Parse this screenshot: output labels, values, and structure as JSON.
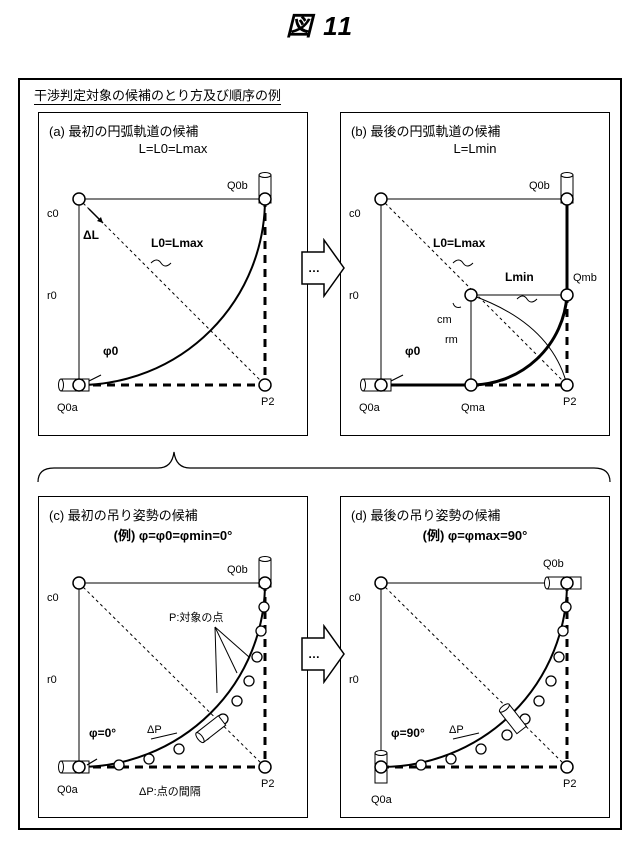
{
  "figure_title": "図 11",
  "heading": "干渉判定対象の候補のとり方及び順序の例",
  "ellipsis": "…",
  "panels": {
    "a": {
      "title": "(a) 最初の円弧軌道の候補",
      "subtitle": "L=L0=Lmax",
      "labels": {
        "c0": "c0",
        "r0": "r0",
        "q0a": "Q0a",
        "q0b": "Q0b",
        "p2": "P2",
        "dl": "ΔL",
        "l0": "L0=Lmax",
        "phi": "φ0"
      }
    },
    "b": {
      "title": "(b) 最後の円弧軌道の候補",
      "subtitle": "L=Lmin",
      "labels": {
        "c0": "c0",
        "r0": "r0",
        "q0a": "Q0a",
        "q0b": "Q0b",
        "p2": "P2",
        "l0": "L0=Lmax",
        "lmin": "Lmin",
        "qmb": "Qmb",
        "cm": "cm",
        "rm": "rm",
        "qma": "Qma",
        "phi": "φ0"
      }
    },
    "c": {
      "title": "(c) 最初の吊り姿勢の候補",
      "subtitle": "(例) φ=φ0=φmin=0°",
      "labels": {
        "c0": "c0",
        "r0": "r0",
        "q0a": "Q0a",
        "q0b": "Q0b",
        "p2": "P2",
        "p": "P:対象の点",
        "dp": "ΔP",
        "phi": "φ=0°",
        "dp_note": "ΔP:点の間隔"
      }
    },
    "d": {
      "title": "(d) 最後の吊り姿勢の候補",
      "subtitle": "(例) φ=φmax=90°",
      "labels": {
        "c0": "c0",
        "r0": "r0",
        "q0a": "Q0a",
        "q0b": "Q0b",
        "p2": "P2",
        "dp": "ΔP",
        "phi": "φ=90°"
      }
    }
  }
}
